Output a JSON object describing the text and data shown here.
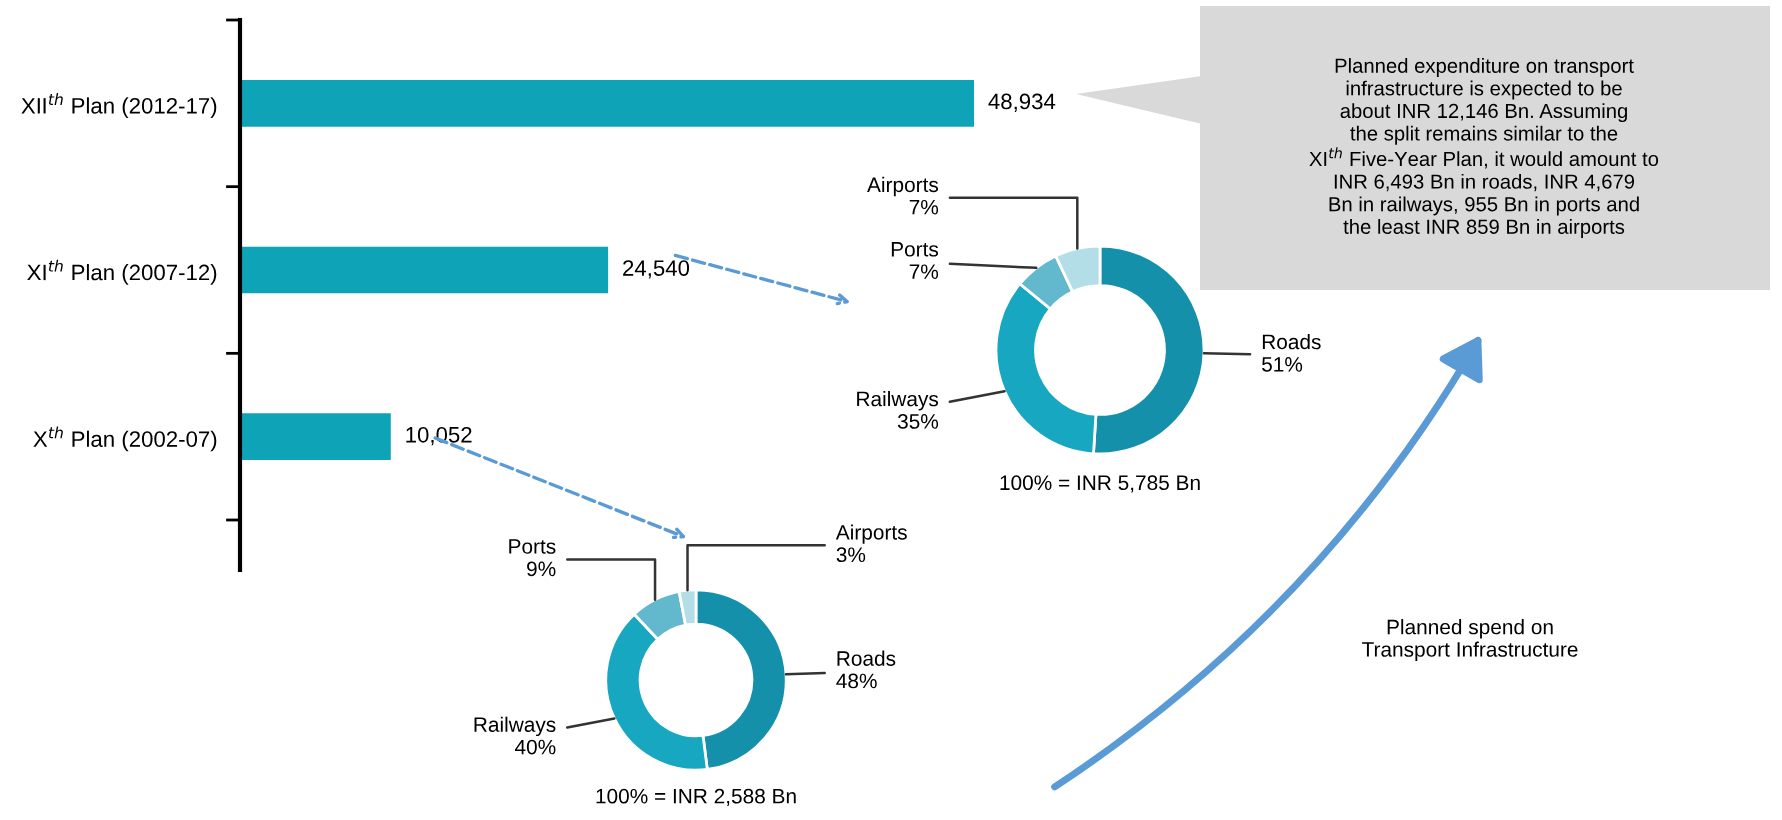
{
  "chart_data": [
    {
      "type": "bar",
      "orientation": "horizontal",
      "categories": [
        "XII$^{th}$ Plan (2012-17)",
        "XI$^{th}$ Plan (2007-12)",
        "X$^{th}$ Plan (2002-07)"
      ],
      "values": [
        48934,
        24540,
        10052
      ],
      "color": "#0fa3b8",
      "value_labels": [
        "48,934",
        "24,540",
        "10,052"
      ],
      "tick_labels": "y",
      "annotations": [
        "Planned expenditure on transport\ninfrastructure is expected to be\nabout INR 12,146 Bn. Assuming\nthe split remains similar to the\nXI$^{th}$ Five-Year Plan, it would amount to\nINR 6,493 Bn in roads, INR 4,679\nBn in railways, 955 Bn in ports and\nthe least INR 859 Bn in airports",
        "Planned spend on\nTransport Infrastructure"
      ]
    },
    {
      "type": "donut",
      "title": "100% = INR 5,785 Bn",
      "categories": [
        "Roads",
        "Railways",
        "Ports",
        "Airports"
      ],
      "values": [
        51,
        35,
        7,
        7
      ],
      "value_labels": [
        "51%",
        "35%",
        "7%",
        "7%"
      ],
      "colors": [
        "#1590aa",
        "#17a7c0",
        "#62b8cc",
        "#b3dde7"
      ]
    },
    {
      "type": "donut",
      "title": "100% = INR 2,588 Bn",
      "categories": [
        "Roads",
        "Railways",
        "Ports",
        "Airports"
      ],
      "values": [
        48,
        40,
        9,
        3
      ],
      "value_labels": [
        "48%",
        "40%",
        "9%",
        "3%"
      ],
      "colors": [
        "#1590aa",
        "#17a7c0",
        "#62b8cc",
        "#b3dde7"
      ]
    }
  ]
}
